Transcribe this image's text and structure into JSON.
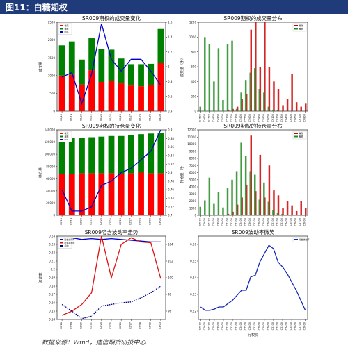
{
  "header": {
    "title": "图11：白糖期权"
  },
  "footer": {
    "source": "数据来源：Wind，建信期货研投中心"
  },
  "chart_data": [
    {
      "id": "p1",
      "type": "bar",
      "title": "SR009期权的成交量变化",
      "ylabel": "成交量",
      "ylim": [
        0,
        2500
      ],
      "yticks": [
        0,
        500,
        1000,
        1500,
        2000,
        2500
      ],
      "y2lim": [
        0.4,
        1.6
      ],
      "y2ticks": [
        0.4,
        0.6,
        0.8,
        1.0,
        1.2,
        1.4,
        1.6
      ],
      "categories": [
        "02/18",
        "02/19",
        "02/20",
        "02/21",
        "02/24",
        "02/25",
        "02/26",
        "02/27",
        "02/28",
        "03/02",
        "03/03"
      ],
      "stacked": true,
      "series": [
        {
          "name": "看涨",
          "type": "bar",
          "color": "#ff0000",
          "values": [
            1000,
            1020,
            750,
            1150,
            820,
            850,
            780,
            720,
            700,
            730,
            1350
          ]
        },
        {
          "name": "看跌",
          "type": "bar",
          "color": "#008000",
          "values": [
            850,
            940,
            700,
            900,
            920,
            880,
            700,
            600,
            620,
            600,
            960
          ]
        },
        {
          "name": "PCR",
          "type": "line",
          "axis": "right",
          "color": "#0000cd",
          "values": [
            0.86,
            0.92,
            0.5,
            0.9,
            1.58,
            1.1,
            0.94,
            1.1,
            1.1,
            0.94,
            0.75
          ]
        }
      ],
      "legend": "top-left"
    },
    {
      "id": "p2",
      "type": "bar",
      "title": "SR009期权的成交量分布",
      "ylabel": "成交量（手）",
      "ylim": [
        0,
        1200
      ],
      "yticks": [
        0,
        200,
        400,
        600,
        800,
        1000,
        1200
      ],
      "categories": [
        "C4500",
        "C4600",
        "C4700",
        "C4800",
        "C4900",
        "C5000",
        "C5100",
        "C5200",
        "C5300",
        "C5400",
        "C5500",
        "C5600",
        "C5700",
        "C5800",
        "C5900",
        "C6000",
        "C6100",
        "C6200",
        "C6300",
        "C6400",
        "C6500",
        "C6600",
        "C6700",
        "C6800"
      ],
      "series": [
        {
          "name": "看涨",
          "color": "#cc0000",
          "values": [
            0,
            0,
            0,
            0,
            0,
            0,
            20,
            30,
            60,
            160,
            230,
            1100,
            1200,
            600,
            1200,
            600,
            400,
            300,
            80,
            160,
            500,
            120,
            60,
            100
          ]
        },
        {
          "name": "看跌",
          "color": "#228b22",
          "values": [
            60,
            1000,
            900,
            400,
            850,
            150,
            900,
            950,
            30,
            250,
            420,
            520,
            580,
            300,
            250,
            60,
            20,
            10,
            5,
            0,
            0,
            0,
            0,
            0
          ]
        }
      ],
      "legend": "top-right"
    },
    {
      "id": "p3",
      "type": "bar",
      "title": "SR009期权的持仓量变化",
      "ylabel": "持仓量",
      "ylim": [
        0,
        140000
      ],
      "yticks": [
        0,
        20000,
        40000,
        60000,
        80000,
        100000,
        120000,
        140000
      ],
      "y2lim": [
        0.7,
        0.9
      ],
      "y2ticks": [
        0.7,
        0.72,
        0.74,
        0.76,
        0.78,
        0.8,
        0.82,
        0.84,
        0.86,
        0.88,
        0.9
      ],
      "categories": [
        "02/18",
        "02/19",
        "02/20",
        "02/21",
        "02/24",
        "02/25",
        "02/26",
        "02/27",
        "02/28",
        "03/02",
        "03/03"
      ],
      "stacked": true,
      "series": [
        {
          "name": "看涨",
          "type": "bar",
          "color": "#ff0000",
          "values": [
            68000,
            68000,
            69000,
            69000,
            69000,
            69000,
            68000,
            69000,
            70000,
            69000,
            69000
          ]
        },
        {
          "name": "看跌",
          "type": "bar",
          "color": "#008000",
          "values": [
            58000,
            59000,
            58000,
            59000,
            60000,
            61000,
            62000,
            62000,
            63000,
            65000,
            66000
          ]
        },
        {
          "name": "PCR",
          "type": "line",
          "axis": "right",
          "color": "#0000cd",
          "values": [
            0.76,
            0.71,
            0.71,
            0.72,
            0.77,
            0.78,
            0.8,
            0.81,
            0.83,
            0.85,
            0.9
          ]
        }
      ],
      "legend": "top-left"
    },
    {
      "id": "p4",
      "type": "bar",
      "title": "SR009期权的持仓量分布",
      "ylabel": "持仓量（手）",
      "ylim": [
        0,
        12000
      ],
      "yticks": [
        0,
        1000,
        2000,
        3000,
        4000,
        5000,
        6000,
        7000,
        8000,
        9000,
        10000,
        11000,
        12000
      ],
      "categories": [
        "C4500",
        "C4600",
        "C4700",
        "C4800",
        "C4900",
        "C5000",
        "C5100",
        "C5200",
        "C5300",
        "C5400",
        "C5500",
        "C5600",
        "C5700",
        "C5800",
        "C5900",
        "C6000",
        "C6100",
        "C6200",
        "C6300",
        "C6400",
        "C6500",
        "C6600",
        "C6700",
        "C6800"
      ],
      "series": [
        {
          "name": "看涨",
          "color": "#cc0000",
          "values": [
            0,
            0,
            0,
            0,
            0,
            0,
            200,
            500,
            1500,
            2500,
            4300,
            11200,
            3400,
            8500,
            2500,
            7000,
            3500,
            2800,
            1000,
            2000,
            1400,
            600,
            2000,
            1000
          ]
        },
        {
          "name": "看跌",
          "color": "#228b22",
          "values": [
            1200,
            2100,
            5300,
            1600,
            3300,
            1100,
            3800,
            5000,
            6200,
            10200,
            8300,
            6200,
            5700,
            2200,
            4600,
            1900,
            700,
            300,
            200,
            100,
            0,
            0,
            0,
            0
          ]
        }
      ],
      "legend": "top-right"
    },
    {
      "id": "p5",
      "type": "line",
      "title": "SR009隐含波动率走势",
      "ylabel": "波动率",
      "ylim": [
        0.14,
        0.24
      ],
      "yticks": [
        0.14,
        0.15,
        0.16,
        0.17,
        0.18,
        0.19,
        0.2,
        0.21,
        0.22,
        0.23,
        0.24
      ],
      "y2lim": [
        95,
        105
      ],
      "y2ticks": [
        96,
        98,
        100,
        102,
        104
      ],
      "categories": [
        "02/18",
        "02/19",
        "02/20",
        "02/21",
        "02/24",
        "02/25",
        "02/26",
        "02/27",
        "02/28",
        "03/02",
        "03/03"
      ],
      "series": [
        {
          "name": "隐含波动率",
          "color": "#0000cd",
          "values": [
            0.234,
            0.238,
            0.236,
            0.237,
            0.236,
            0.237,
            0.236,
            0.235,
            0.234,
            0.233,
            0.233
          ]
        },
        {
          "name": "历史波动率",
          "color": "#dd1111",
          "values": [
            0.145,
            0.15,
            0.158,
            0.172,
            0.24,
            0.19,
            0.23,
            0.238,
            0.233,
            0.232,
            0.189
          ]
        },
        {
          "name": "标的",
          "axis": "right",
          "dashed": true,
          "color": "#00008b",
          "values": [
            96.8,
            96.0,
            95.1,
            95.4,
            96.6,
            96.8,
            97.0,
            97.1,
            97.6,
            98.2,
            99.0
          ]
        }
      ],
      "legend": "top-left"
    },
    {
      "id": "p6",
      "type": "line",
      "title": "SR009波动率微笑",
      "xlabel": "行权价",
      "ylim": [
        0.215,
        0.265
      ],
      "yticks": [
        0.22,
        0.23,
        0.24,
        0.25,
        0.26
      ],
      "categories": [
        "C4500",
        "C4600",
        "C4700",
        "C4800",
        "C4900",
        "C5000",
        "C5100",
        "C5200",
        "C5300",
        "C5400",
        "C5500",
        "C5600",
        "C5700",
        "C5800",
        "C5900",
        "C6000",
        "C6100",
        "C6200",
        "C6300",
        "C6400",
        "C6500",
        "C6600",
        "C6700",
        "C6800"
      ],
      "series": [
        {
          "name": "隐含波动率",
          "color": "#1428b4",
          "values": [
            0.2225,
            0.2205,
            0.2205,
            0.2212,
            0.2225,
            0.2225,
            0.2245,
            0.2265,
            0.2295,
            0.2325,
            0.2325,
            0.2405,
            0.2415,
            0.2495,
            0.2545,
            0.2595,
            0.2575,
            0.2495,
            0.2465,
            0.2425,
            0.2375,
            0.2325,
            0.2265,
            0.2205
          ]
        }
      ],
      "legend": "top-right"
    }
  ]
}
